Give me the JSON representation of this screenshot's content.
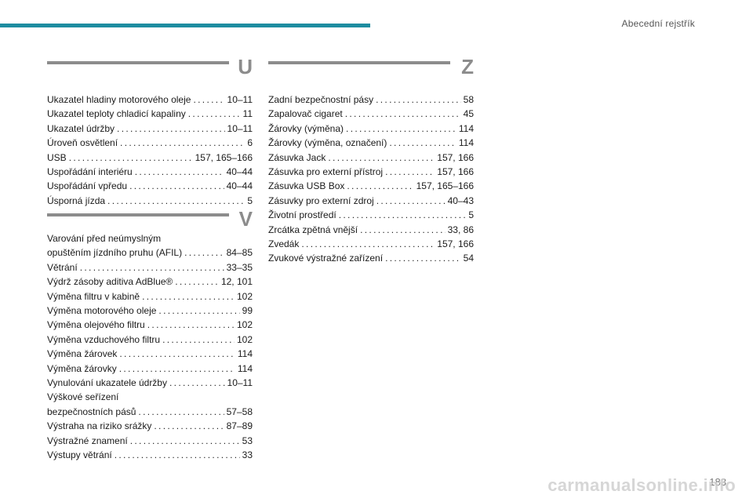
{
  "header": {
    "title": "Abecední rejstřík"
  },
  "colors": {
    "accent_bar": "#1d8ca0",
    "rule": "#8c8c8c"
  },
  "sections": {
    "U": {
      "letter": "U",
      "entries": [
        {
          "label": "Ukazatel hladiny motorového oleje",
          "pages": "10–11"
        },
        {
          "label": "Ukazatel teploty chladicí kapaliny",
          "pages": "11"
        },
        {
          "label": "Ukazatel údržby",
          "pages": "10–11"
        },
        {
          "label": "Úroveň osvětlení",
          "pages": "6"
        },
        {
          "label": "USB",
          "pages": "157, 165–166"
        },
        {
          "label": "Uspořádání interiéru",
          "pages": "40–44"
        },
        {
          "label": "Uspořádání vpředu",
          "pages": "40–44"
        },
        {
          "label": "Úsporná jízda",
          "pages": "5"
        }
      ]
    },
    "V": {
      "letter": "V",
      "entries": [
        {
          "pre": "Varování před neúmyslným",
          "label": "opuštěním jízdního pruhu (AFIL)",
          "pages": "84–85"
        },
        {
          "label": "Větrání",
          "pages": "33–35"
        },
        {
          "label": "Výdrž zásoby aditiva AdBlue®",
          "pages": "12, 101"
        },
        {
          "label": "Výměna filtru v kabině",
          "pages": "102"
        },
        {
          "label": "Výměna motorového oleje",
          "pages": "99"
        },
        {
          "label": "Výměna olejového filtru",
          "pages": "102"
        },
        {
          "label": "Výměna vzduchového filtru",
          "pages": "102"
        },
        {
          "label": "Výměna žárovek",
          "pages": "114"
        },
        {
          "label": "Výměna žárovky",
          "pages": "114"
        },
        {
          "label": "Vynulování ukazatele údržby",
          "pages": "10–11"
        },
        {
          "pre": "Výškové seřízení",
          "label": "bezpečnostních pásů",
          "pages": "57–58"
        },
        {
          "label": "Výstraha na riziko srážky",
          "pages": "87–89"
        },
        {
          "label": "Výstražné znamení",
          "pages": "53"
        },
        {
          "label": "Výstupy větrání",
          "pages": "33"
        }
      ]
    },
    "Z": {
      "letter": "Z",
      "entries": [
        {
          "label": "Zadní bezpečnostní pásy",
          "pages": "58"
        },
        {
          "label": "Zapalovač cigaret",
          "pages": "45"
        },
        {
          "label": "Žárovky (výměna)",
          "pages": "114"
        },
        {
          "label": "Žárovky (výměna, označení)",
          "pages": "114"
        },
        {
          "label": "Zásuvka Jack",
          "pages": "157, 166"
        },
        {
          "label": "Zásuvka pro externí přístroj",
          "pages": "157, 166"
        },
        {
          "label": "Zásuvka USB Box",
          "pages": "157, 165–166"
        },
        {
          "label": "Zásuvky pro externí zdroj",
          "pages": "40–43"
        },
        {
          "label": "Životní prostředí",
          "pages": "5"
        },
        {
          "label": "Zrcátka zpětná vnější",
          "pages": "33, 86"
        },
        {
          "label": "Zvedák",
          "pages": "157, 166"
        },
        {
          "label": "Zvukové výstražné zařízení",
          "pages": "54"
        }
      ]
    }
  },
  "page_number": "183",
  "watermark": "carmanualsonline.info"
}
